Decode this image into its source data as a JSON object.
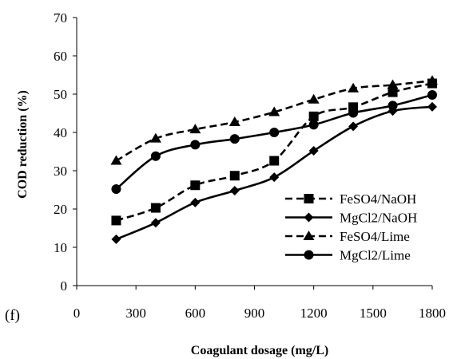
{
  "chart_data": {
    "type": "line",
    "panel_label": "(f)",
    "xlabel": "Coagulant dosage (mg/L)",
    "ylabel": "COD reduction (%)",
    "xlim": [
      0,
      1800
    ],
    "ylim": [
      0,
      70
    ],
    "xticks": [
      0,
      300,
      600,
      900,
      1200,
      1500,
      1800
    ],
    "yticks": [
      0,
      10,
      20,
      30,
      40,
      50,
      60,
      70
    ],
    "grid": false,
    "legend_position": "bottom-right",
    "x": [
      200,
      400,
      600,
      800,
      1000,
      1200,
      1400,
      1600,
      1800
    ],
    "series": [
      {
        "name": "FeSO4/NaOH",
        "values": [
          17.0,
          20.3,
          26.2,
          28.7,
          32.6,
          44.2,
          46.6,
          50.5,
          52.8
        ],
        "marker": "square",
        "dash": true,
        "color": "#000000"
      },
      {
        "name": "MgCl2/NaOH",
        "values": [
          12.1,
          16.4,
          21.7,
          24.8,
          28.3,
          35.2,
          41.6,
          45.6,
          46.7
        ],
        "marker": "diamond",
        "dash": false,
        "color": "#000000"
      },
      {
        "name": "FeSO4/Lime",
        "values": [
          32.6,
          38.4,
          40.8,
          42.7,
          45.3,
          48.6,
          51.5,
          52.4,
          53.5
        ],
        "marker": "triangle",
        "dash": true,
        "color": "#000000"
      },
      {
        "name": "MgCl2/Lime",
        "values": [
          25.2,
          33.8,
          36.8,
          38.3,
          40.0,
          42.0,
          45.1,
          47.0,
          49.8
        ],
        "marker": "circle",
        "dash": false,
        "color": "#000000"
      }
    ]
  }
}
